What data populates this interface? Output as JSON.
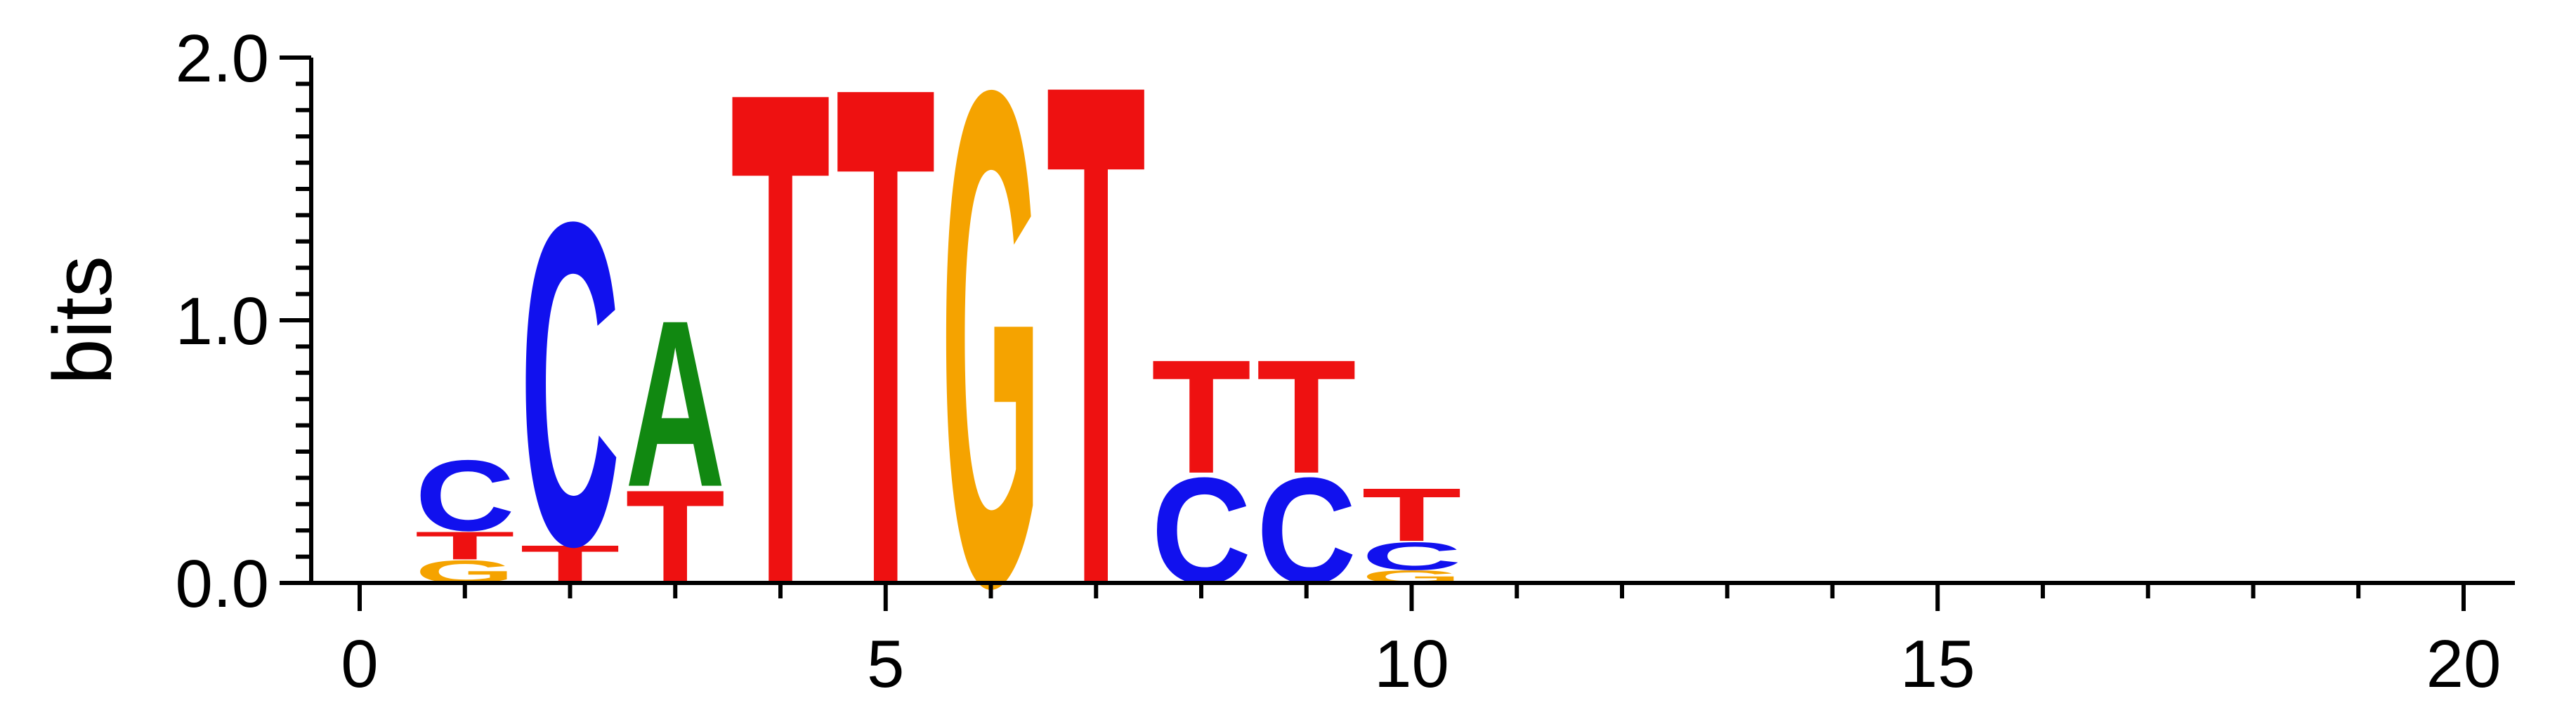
{
  "chart_data": {
    "type": "sequence-logo",
    "ylabel": "bits",
    "xlabel": "",
    "xlim": [
      -0.5,
      20.5
    ],
    "ylim": [
      0,
      2.0
    ],
    "x_ticks": [
      0,
      5,
      10,
      15,
      20
    ],
    "x_minor_step": 1,
    "y_ticks": [
      "0.0",
      "1.0",
      "2.0"
    ],
    "y_minor_step": 0.1,
    "colors": {
      "A": "#118811",
      "C": "#1111ee",
      "G": "#f5a300",
      "T": "#ee1111"
    },
    "positions": [
      {
        "x": 1,
        "letters": [
          {
            "base": "G",
            "bits": 0.09
          },
          {
            "base": "T",
            "bits": 0.11
          },
          {
            "base": "C",
            "bits": 0.28
          }
        ]
      },
      {
        "x": 2,
        "letters": [
          {
            "base": "T",
            "bits": 0.15
          },
          {
            "base": "C",
            "bits": 1.28
          }
        ]
      },
      {
        "x": 3,
        "letters": [
          {
            "base": "T",
            "bits": 0.37
          },
          {
            "base": "A",
            "bits": 0.66
          }
        ]
      },
      {
        "x": 4,
        "letters": [
          {
            "base": "T",
            "bits": 1.96
          }
        ]
      },
      {
        "x": 5,
        "letters": [
          {
            "base": "T",
            "bits": 1.98
          }
        ]
      },
      {
        "x": 6,
        "letters": [
          {
            "base": "G",
            "bits": 1.96
          }
        ]
      },
      {
        "x": 7,
        "letters": [
          {
            "base": "T",
            "bits": 1.99
          }
        ]
      },
      {
        "x": 8,
        "letters": [
          {
            "base": "C",
            "bits": 0.42
          },
          {
            "base": "T",
            "bits": 0.45
          }
        ]
      },
      {
        "x": 9,
        "letters": [
          {
            "base": "C",
            "bits": 0.42
          },
          {
            "base": "T",
            "bits": 0.45
          }
        ]
      },
      {
        "x": 10,
        "letters": [
          {
            "base": "G",
            "bits": 0.05
          },
          {
            "base": "C",
            "bits": 0.11
          },
          {
            "base": "T",
            "bits": 0.21
          }
        ]
      }
    ]
  }
}
